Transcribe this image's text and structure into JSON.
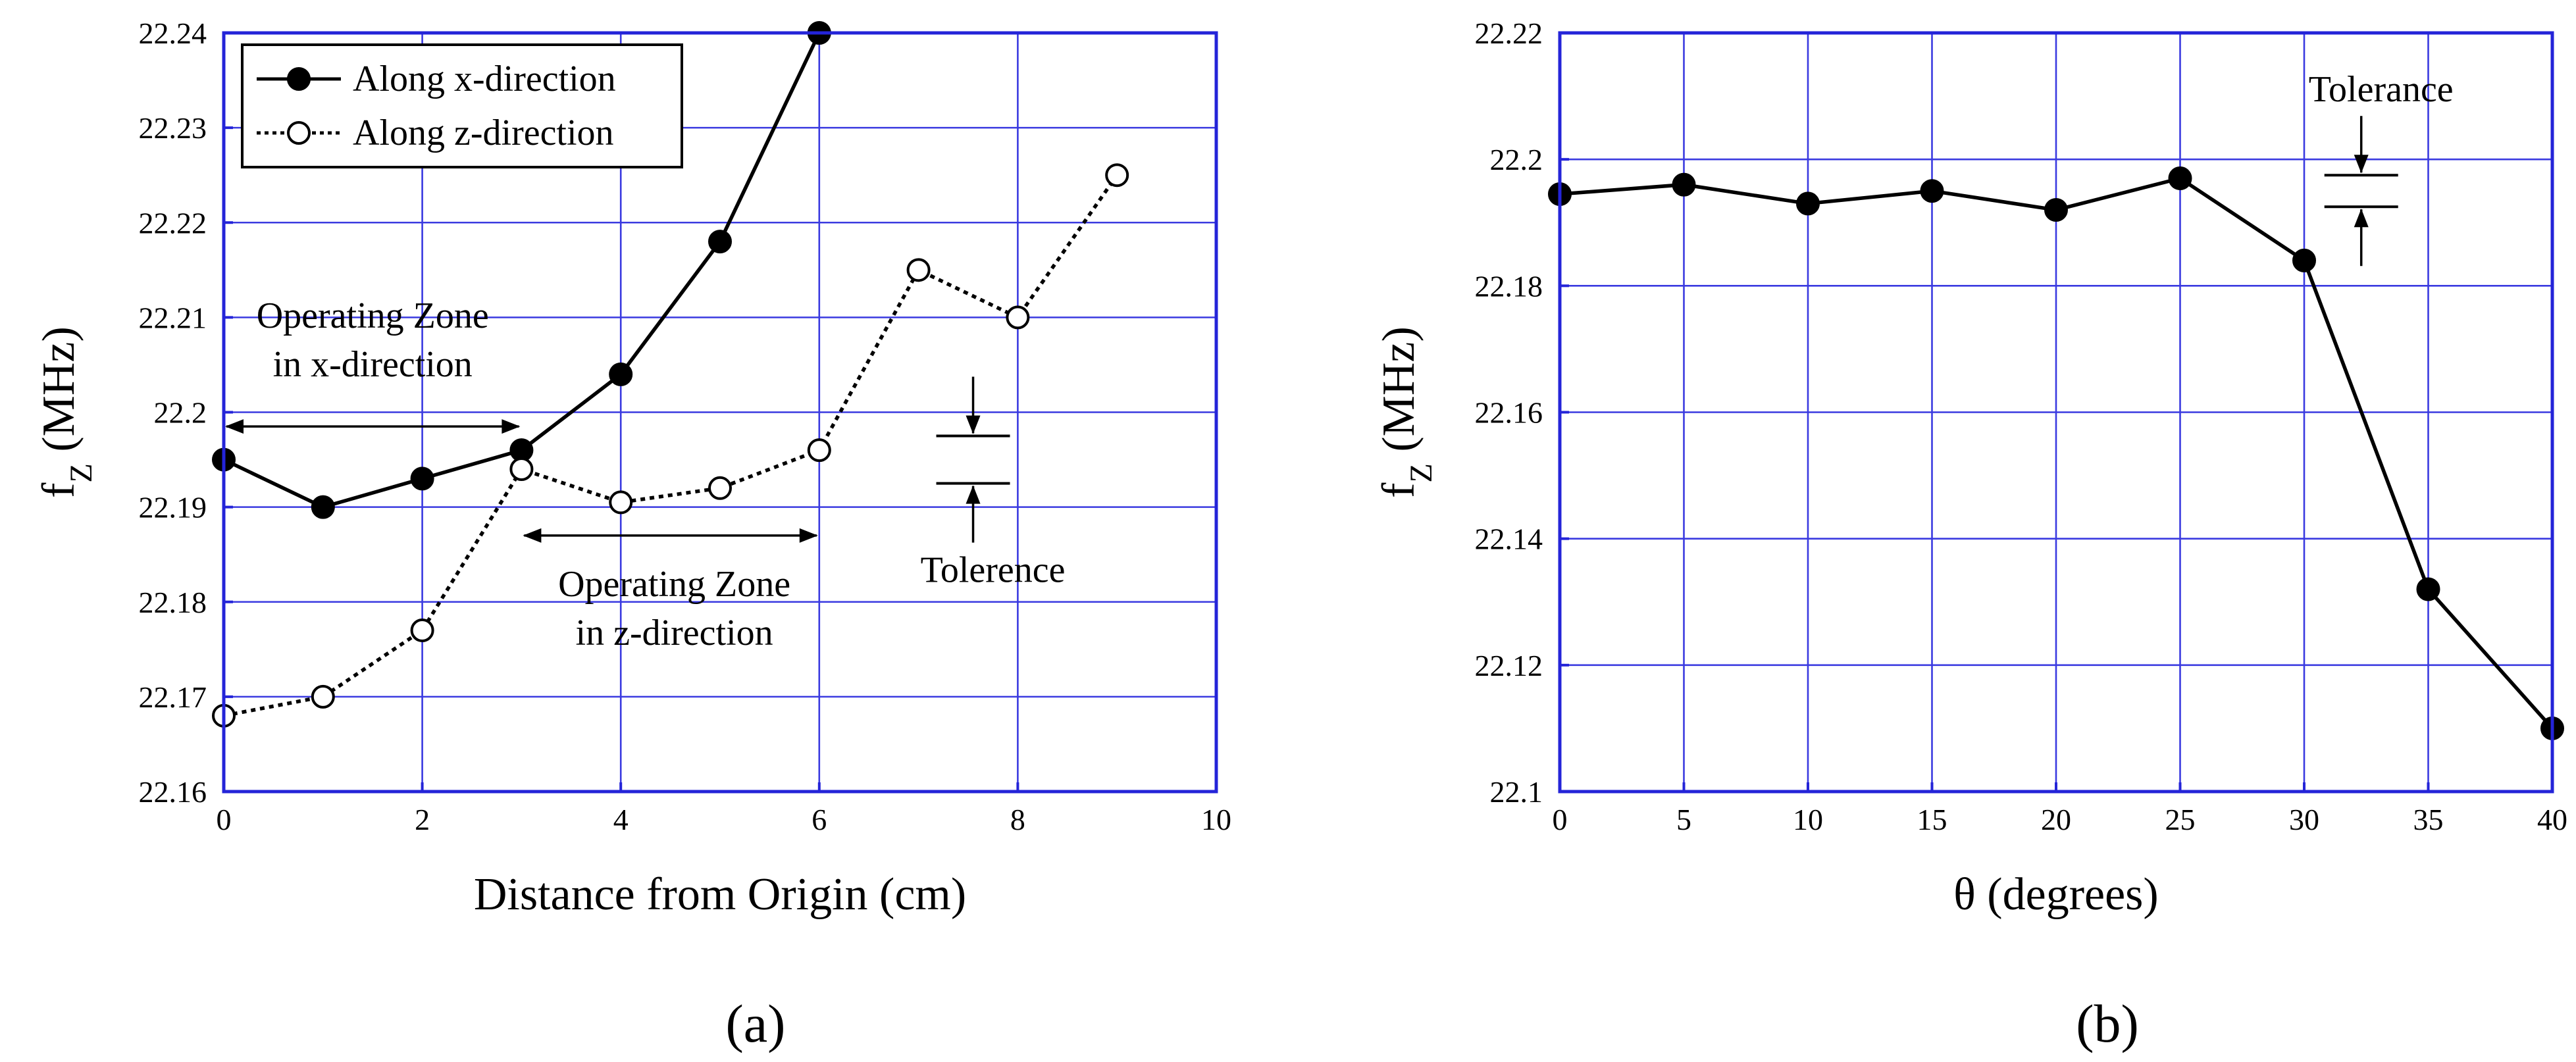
{
  "chart_data": [
    {
      "type": "line",
      "panel_label": "(a)",
      "xlabel": "Distance from Origin (cm)",
      "ylabel_main": "f",
      "ylabel_sub": "Z",
      "ylabel_rest": " (MHz)",
      "xlim": [
        0,
        10
      ],
      "ylim": [
        22.16,
        22.24
      ],
      "xticks": [
        0,
        2,
        4,
        6,
        8,
        10
      ],
      "xtick_labels": [
        "0",
        "2",
        "4",
        "6",
        "8",
        "10"
      ],
      "yticks": [
        22.16,
        22.17,
        22.18,
        22.19,
        22.2,
        22.21,
        22.22,
        22.23,
        22.24
      ],
      "ytick_labels": [
        "22.16",
        "22.17",
        "22.18",
        "22.19",
        "22.2",
        "22.21",
        "22.22",
        "22.23",
        "22.24"
      ],
      "grid": true,
      "legend_position": "top-left",
      "series": [
        {
          "name": "Along x-direction",
          "style": "solid",
          "marker": "filled-circle",
          "x": [
            0,
            1,
            2,
            3,
            4,
            5,
            6
          ],
          "y": [
            22.195,
            22.19,
            22.193,
            22.196,
            22.204,
            22.218,
            22.24
          ]
        },
        {
          "name": "Along z-direction",
          "style": "dotted",
          "marker": "open-circle",
          "x": [
            0,
            1,
            2,
            3,
            4,
            5,
            6,
            7,
            8,
            9
          ],
          "y": [
            22.168,
            22.17,
            22.177,
            22.194,
            22.1905,
            22.192,
            22.196,
            22.215,
            22.21,
            22.225
          ]
        }
      ],
      "annotations": {
        "zone_x": {
          "line1": "Operating Zone",
          "line2": "in x-direction",
          "x_from": 0,
          "x_to": 3,
          "y": 22.1985
        },
        "zone_z": {
          "line1": "Operating Zone",
          "line2": "in z-direction",
          "x_from": 3,
          "x_to": 6,
          "y": 22.187
        },
        "tolerance": {
          "label": "Tolerence",
          "x": 7.55,
          "y_upper": 22.1975,
          "y_lower": 22.1925
        }
      }
    },
    {
      "type": "line",
      "panel_label": "(b)",
      "xlabel": "θ (degrees)",
      "ylabel_main": "f",
      "ylabel_sub": "Z",
      "ylabel_rest": " (MHz)",
      "xlim": [
        0,
        40
      ],
      "ylim": [
        22.1,
        22.22
      ],
      "xticks": [
        0,
        5,
        10,
        15,
        20,
        25,
        30,
        35,
        40
      ],
      "xtick_labels": [
        "0",
        "5",
        "10",
        "15",
        "20",
        "25",
        "30",
        "35",
        "40"
      ],
      "yticks": [
        22.1,
        22.12,
        22.14,
        22.16,
        22.18,
        22.2,
        22.22
      ],
      "ytick_labels": [
        "22.1",
        "22.12",
        "22.14",
        "22.16",
        "22.18",
        "22.2",
        "22.22"
      ],
      "grid": true,
      "series": [
        {
          "name": "",
          "style": "solid",
          "marker": "filled-circle",
          "x": [
            0,
            5,
            10,
            15,
            20,
            25,
            30,
            35,
            40
          ],
          "y": [
            22.1945,
            22.196,
            22.193,
            22.195,
            22.192,
            22.197,
            22.184,
            22.132,
            22.11
          ]
        }
      ],
      "annotations": {
        "tolerance": {
          "label": "Tolerance",
          "x": 32.3,
          "y_upper": 22.1975,
          "y_lower": 22.1925
        }
      }
    }
  ]
}
